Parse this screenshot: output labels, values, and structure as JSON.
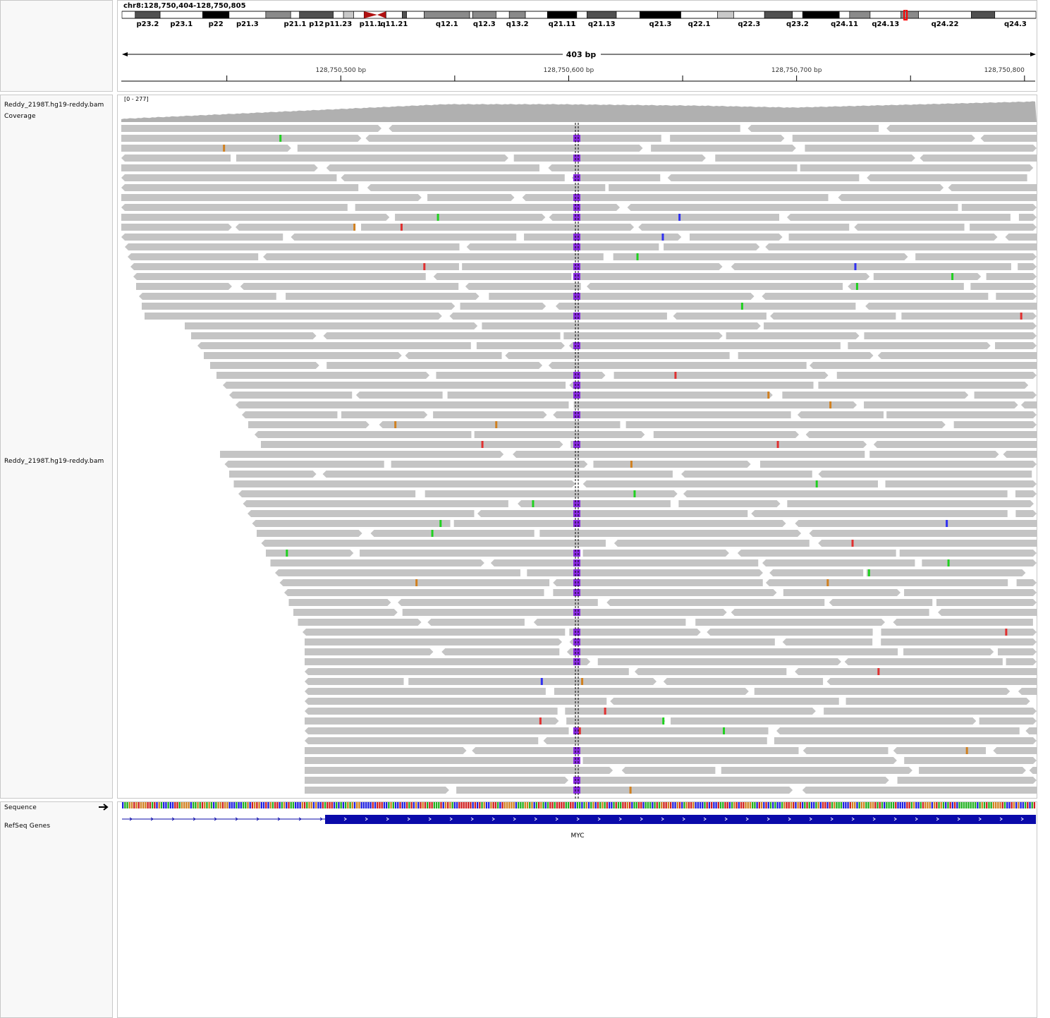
{
  "locus": "chr8:128,750,404-128,750,805",
  "ideogram": {
    "bands": [
      {
        "name": "p23.3",
        "stain": "white"
      },
      {
        "name": "p23.2",
        "stain": "gpos75"
      },
      {
        "name": "p23.1",
        "stain": "white"
      },
      {
        "name": "p22",
        "stain": "gpos100"
      },
      {
        "name": "p21.3",
        "stain": "white"
      },
      {
        "name": "p21.2",
        "stain": "gpos50"
      },
      {
        "name": "p21.1",
        "stain": "white"
      },
      {
        "name": "p12",
        "stain": "gpos75"
      },
      {
        "name": "p11.23",
        "stain": "white"
      },
      {
        "name": "p11.22",
        "stain": "gpos25"
      },
      {
        "name": "p11.21",
        "stain": "white"
      },
      {
        "name": "p11.1",
        "stain": "acen"
      },
      {
        "name": "q11.1",
        "stain": "acen"
      },
      {
        "name": "q11.21",
        "stain": "white"
      },
      {
        "name": "q11.22",
        "stain": "gpos75"
      },
      {
        "name": "q11.23",
        "stain": "white"
      },
      {
        "name": "q12.1",
        "stain": "gpos50"
      },
      {
        "name": "q12.2",
        "stain": "white"
      },
      {
        "name": "q12.3",
        "stain": "gpos50"
      },
      {
        "name": "q13.1",
        "stain": "white"
      },
      {
        "name": "q13.2",
        "stain": "gpos50"
      },
      {
        "name": "q13.3",
        "stain": "white"
      },
      {
        "name": "q21.11",
        "stain": "gpos100"
      },
      {
        "name": "q21.12",
        "stain": "white"
      },
      {
        "name": "q21.13",
        "stain": "gpos75"
      },
      {
        "name": "q21.2",
        "stain": "white"
      },
      {
        "name": "q21.3",
        "stain": "gpos100"
      },
      {
        "name": "q22.1",
        "stain": "white"
      },
      {
        "name": "q22.2",
        "stain": "gpos25"
      },
      {
        "name": "q22.3",
        "stain": "white"
      },
      {
        "name": "q23.1",
        "stain": "gpos75"
      },
      {
        "name": "q23.2",
        "stain": "white"
      },
      {
        "name": "q23.3",
        "stain": "gpos100"
      },
      {
        "name": "q24.11",
        "stain": "white"
      },
      {
        "name": "q24.12",
        "stain": "gpos50"
      },
      {
        "name": "q24.13",
        "stain": "white"
      },
      {
        "name": "q24.21",
        "stain": "gpos50"
      },
      {
        "name": "q24.22",
        "stain": "white"
      },
      {
        "name": "q24.23",
        "stain": "gpos75"
      },
      {
        "name": "q24.3",
        "stain": "white"
      }
    ],
    "labels": [
      "p23.2",
      "p23.1",
      "p22",
      "p21.3",
      "p21.1",
      "p12",
      "p11.23",
      "p11.1",
      "q11.21",
      "q12.1",
      "q12.3",
      "q13.2",
      "q21.11",
      "q21.13",
      "q21.3",
      "q22.1",
      "q22.3",
      "q23.2",
      "q24.11",
      "q24.13",
      "q24.22",
      "q24.3"
    ],
    "current_band": "q24.21",
    "highlight_color": "#ff0000"
  },
  "ruler": {
    "span_label": "403 bp",
    "start": 128750404,
    "end": 128750805,
    "tick_labels": [
      {
        "pos": 128750500,
        "label": "128,750,500 bp"
      },
      {
        "pos": 128750600,
        "label": "128,750,600 bp"
      },
      {
        "pos": 128750700,
        "label": "128,750,700 bp"
      },
      {
        "pos": 128750800,
        "label": "128,750,800"
      }
    ],
    "minor_ticks": [
      128750450,
      128750550,
      128750650,
      128750750
    ]
  },
  "tracks": {
    "coverage_name": "Reddy_2198T.hg19-reddy.bam Coverage",
    "coverage_range": "[0 - 277]",
    "alignment_name": "Reddy_2198T.hg19-reddy.bam",
    "sequence_name": "Sequence",
    "refseq_name": "RefSeq Genes",
    "gene_name": "MYC"
  },
  "colors": {
    "read": "#c4c4c4",
    "insertion": "#8a2be2",
    "mismatch_A": "#20d020",
    "mismatch_C": "#3030f0",
    "mismatch_G": "#d08020",
    "mismatch_T": "#e03030",
    "gene": "#0a0aaa",
    "coverage": "#b0b0b0"
  }
}
